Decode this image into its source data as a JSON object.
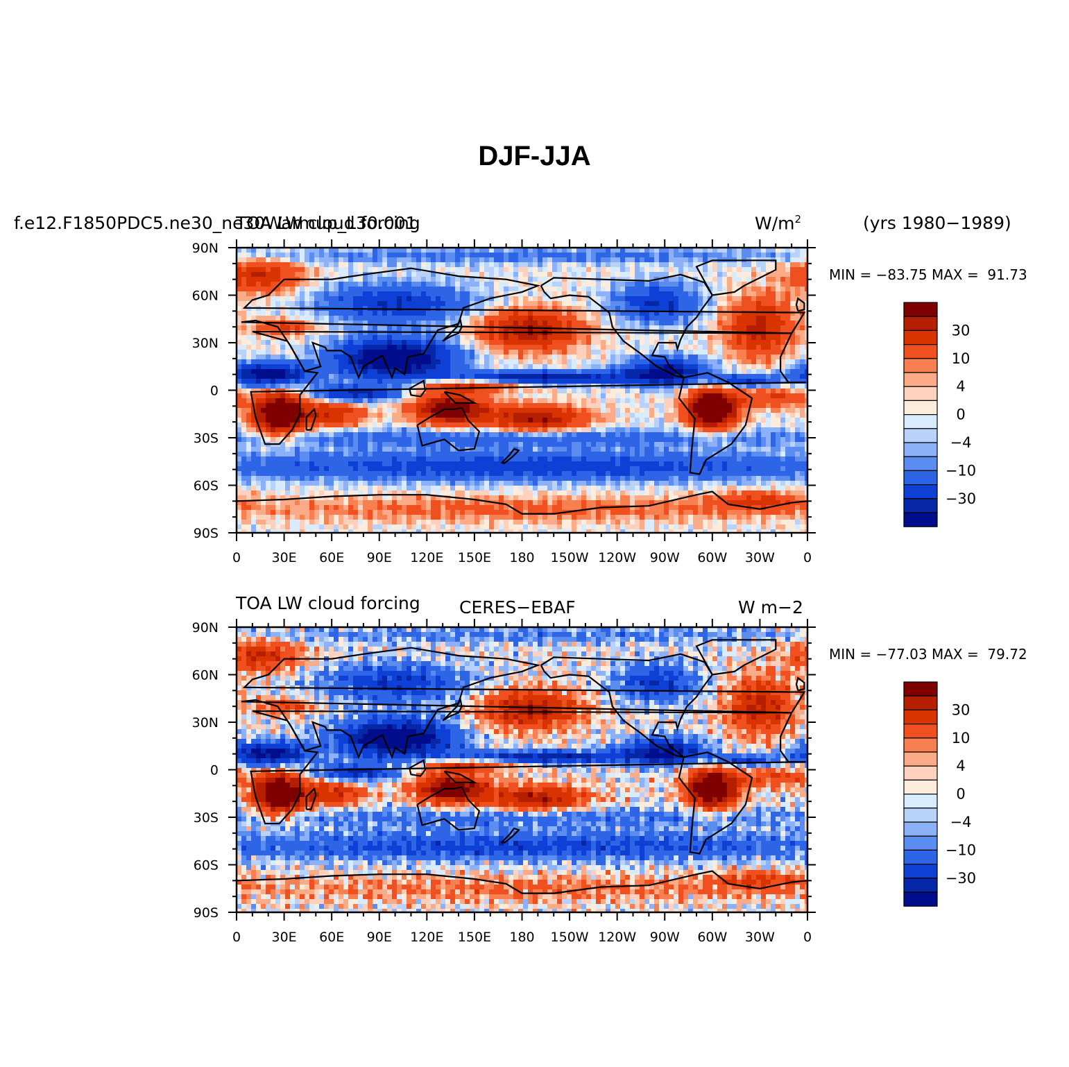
{
  "figure": {
    "title": "DJF-JJA",
    "years_label": "(yrs 1980−1989)"
  },
  "panels": [
    {
      "left_string": "f.e12.F1850PDC5.ne30_ne30Warmup_L30.001",
      "center_string": "TOA LW cloud forcing",
      "units_base": "W/m",
      "units_sup": "2",
      "stats": "MIN = −83.75 MAX =  91.73"
    },
    {
      "left_string": "TOA LW cloud forcing",
      "center_string": "CERES−EBAF",
      "units_base": "W m−2",
      "units_sup": "",
      "stats": "MIN = −77.03 MAX =  79.72"
    }
  ],
  "colorbar": {
    "colors": [
      "#7f0000",
      "#b51f00",
      "#d93400",
      "#f05020",
      "#f77f50",
      "#fbab88",
      "#fdd1bd",
      "#fdebdb",
      "#d8ecfd",
      "#b8d2fc",
      "#8cb1f8",
      "#5b8cf0",
      "#2e64e6",
      "#0f40d5",
      "#0627a8",
      "#000d8c"
    ],
    "labels": [
      "30",
      "10",
      "4",
      "0",
      "−4",
      "−10",
      "−30"
    ]
  },
  "axes": {
    "lat_labels": [
      "90N",
      "60N",
      "30N",
      "0",
      "30S",
      "60S",
      "90S"
    ],
    "lon_labels": [
      "0",
      "30E",
      "60E",
      "90E",
      "120E",
      "150E",
      "180",
      "150W",
      "120W",
      "90W",
      "60W",
      "30W",
      "0"
    ]
  },
  "chart_data": {
    "type": "heatmap",
    "title": "DJF-JJA",
    "variable": "TOA LW cloud forcing",
    "units": "W/m2",
    "years": "1980-1989",
    "x_range": [
      0,
      360
    ],
    "y_range": [
      -90,
      90
    ],
    "contour_levels": [
      -40,
      -30,
      -20,
      -10,
      -7,
      -4,
      -2,
      0,
      2,
      4,
      7,
      10,
      20,
      30,
      40
    ],
    "panels": [
      {
        "source": "f.e12.F1850PDC5.ne30_ne30Warmup_L30.001",
        "min": -83.75,
        "max": 91.73
      },
      {
        "source": "CERES-EBAF",
        "min": -77.03,
        "max": 79.72
      }
    ]
  }
}
